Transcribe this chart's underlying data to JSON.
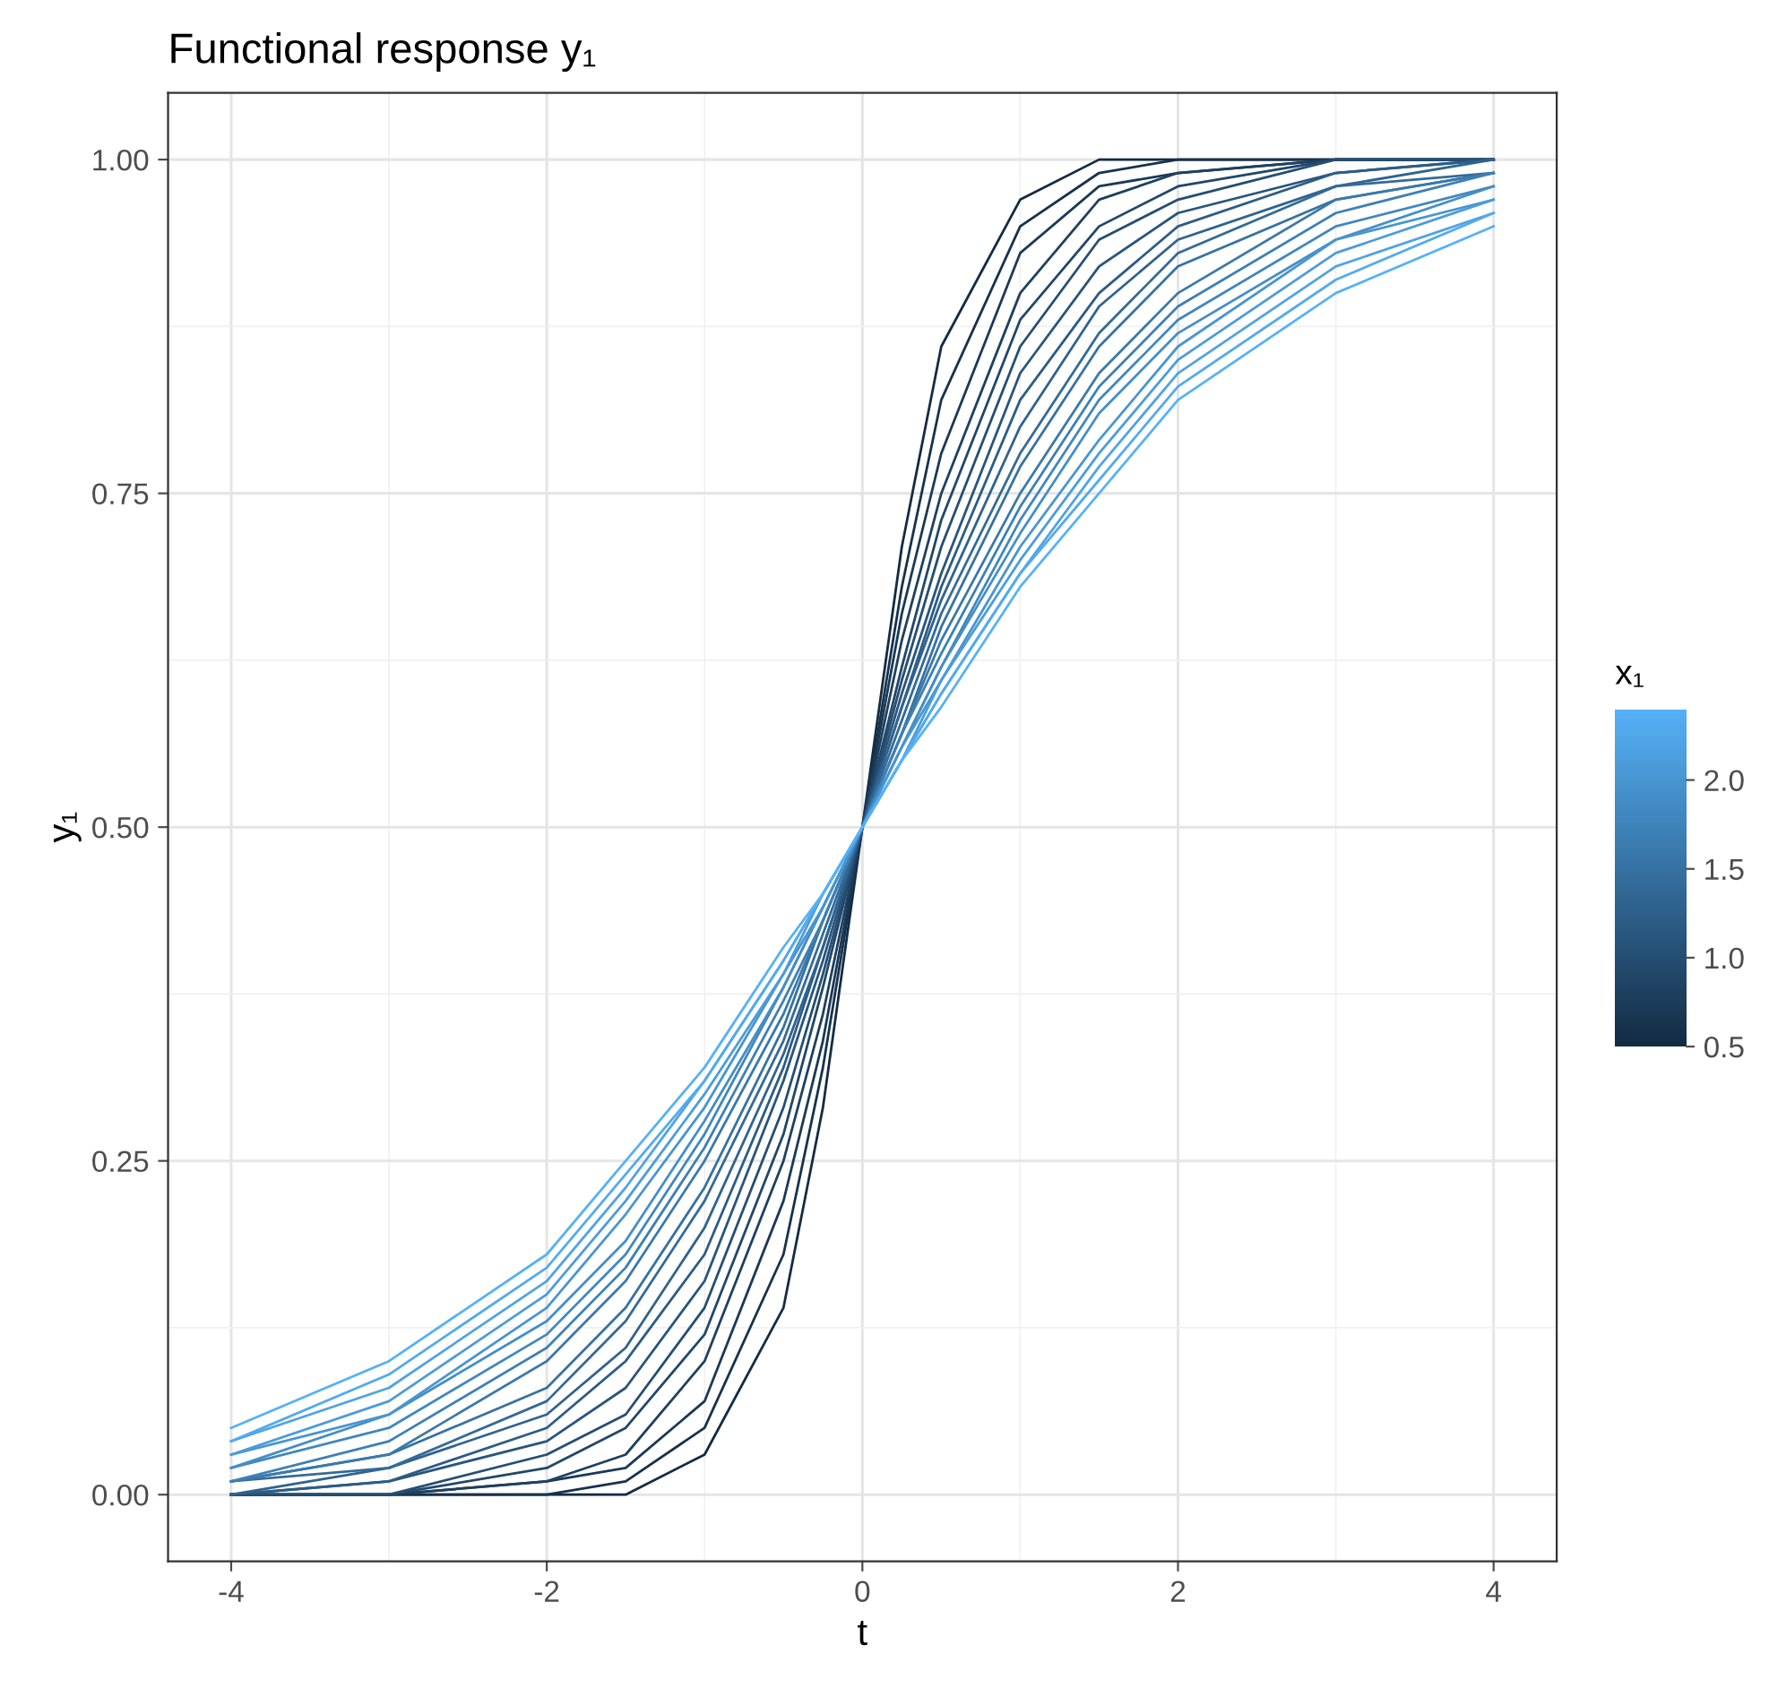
{
  "chart_data": {
    "type": "line",
    "title": "Functional response y₁",
    "xlabel": "t",
    "ylabel": "y₁",
    "clabel": "x₁",
    "x": [
      -4,
      -3,
      -2,
      -1.5,
      -1,
      -0.5,
      -0.25,
      0,
      0.25,
      0.5,
      1,
      1.5,
      2,
      3,
      4
    ],
    "series": [
      {
        "color": "#132b43",
        "values": [
          0.0,
          0.0,
          0.0,
          0.0,
          0.03,
          0.14,
          0.29,
          0.5,
          0.71,
          0.86,
          0.97,
          1.0,
          1.0,
          1.0,
          1.0
        ]
      },
      {
        "color": "#16324c",
        "values": [
          0.0,
          0.0,
          0.0,
          0.01,
          0.05,
          0.18,
          0.32,
          0.5,
          0.68,
          0.82,
          0.95,
          0.99,
          1.0,
          1.0,
          1.0
        ]
      },
      {
        "color": "#1a3956",
        "values": [
          0.0,
          0.0,
          0.01,
          0.02,
          0.07,
          0.22,
          0.34,
          0.5,
          0.66,
          0.78,
          0.93,
          0.98,
          0.99,
          1.0,
          1.0
        ]
      },
      {
        "color": "#1e405f",
        "values": [
          0.0,
          0.0,
          0.01,
          0.03,
          0.1,
          0.25,
          0.36,
          0.5,
          0.64,
          0.75,
          0.9,
          0.97,
          0.99,
          1.0,
          1.0
        ]
      },
      {
        "color": "#214769",
        "values": [
          0.0,
          0.0,
          0.02,
          0.05,
          0.12,
          0.27,
          0.38,
          0.5,
          0.62,
          0.73,
          0.88,
          0.95,
          0.98,
          1.0,
          1.0
        ]
      },
      {
        "color": "#254e72",
        "values": [
          0.0,
          0.0,
          0.03,
          0.06,
          0.14,
          0.29,
          0.39,
          0.5,
          0.61,
          0.71,
          0.86,
          0.94,
          0.97,
          1.0,
          1.0
        ]
      },
      {
        "color": "#28557c",
        "values": [
          0.0,
          0.01,
          0.04,
          0.08,
          0.16,
          0.31,
          0.4,
          0.5,
          0.6,
          0.69,
          0.84,
          0.92,
          0.96,
          0.99,
          1.0
        ]
      },
      {
        "color": "#2c5c85",
        "values": [
          0.0,
          0.01,
          0.05,
          0.1,
          0.18,
          0.32,
          0.41,
          0.5,
          0.59,
          0.68,
          0.82,
          0.9,
          0.95,
          0.99,
          1.0
        ]
      },
      {
        "color": "#2f638f",
        "values": [
          0.0,
          0.02,
          0.06,
          0.11,
          0.2,
          0.33,
          0.41,
          0.5,
          0.59,
          0.67,
          0.8,
          0.89,
          0.94,
          0.98,
          1.0
        ]
      },
      {
        "color": "#336a98",
        "values": [
          0.01,
          0.02,
          0.07,
          0.13,
          0.22,
          0.34,
          0.42,
          0.5,
          0.58,
          0.66,
          0.78,
          0.87,
          0.93,
          0.98,
          0.99
        ]
      },
      {
        "color": "#3672a2",
        "values": [
          0.01,
          0.03,
          0.08,
          0.14,
          0.23,
          0.35,
          0.43,
          0.5,
          0.57,
          0.65,
          0.77,
          0.86,
          0.92,
          0.97,
          0.99
        ]
      },
      {
        "color": "#3a79ab",
        "values": [
          0.01,
          0.03,
          0.1,
          0.16,
          0.25,
          0.36,
          0.43,
          0.5,
          0.57,
          0.64,
          0.75,
          0.84,
          0.9,
          0.97,
          0.99
        ]
      },
      {
        "color": "#3d80b5",
        "values": [
          0.01,
          0.04,
          0.11,
          0.17,
          0.26,
          0.37,
          0.43,
          0.5,
          0.57,
          0.63,
          0.74,
          0.83,
          0.89,
          0.96,
          0.99
        ]
      },
      {
        "color": "#4187be",
        "values": [
          0.02,
          0.05,
          0.12,
          0.18,
          0.27,
          0.38,
          0.44,
          0.5,
          0.56,
          0.62,
          0.73,
          0.82,
          0.88,
          0.95,
          0.98
        ]
      },
      {
        "color": "#448ec8",
        "values": [
          0.02,
          0.06,
          0.13,
          0.19,
          0.28,
          0.38,
          0.44,
          0.5,
          0.56,
          0.62,
          0.72,
          0.81,
          0.87,
          0.94,
          0.98
        ]
      },
      {
        "color": "#4895d1",
        "values": [
          0.03,
          0.06,
          0.14,
          0.21,
          0.29,
          0.39,
          0.44,
          0.5,
          0.56,
          0.61,
          0.71,
          0.79,
          0.86,
          0.94,
          0.97
        ]
      },
      {
        "color": "#4b9cdb",
        "values": [
          0.03,
          0.07,
          0.15,
          0.22,
          0.3,
          0.39,
          0.45,
          0.5,
          0.55,
          0.61,
          0.7,
          0.78,
          0.85,
          0.93,
          0.97
        ]
      },
      {
        "color": "#4fa3e4",
        "values": [
          0.04,
          0.08,
          0.16,
          0.23,
          0.31,
          0.4,
          0.45,
          0.5,
          0.55,
          0.6,
          0.69,
          0.77,
          0.84,
          0.92,
          0.96
        ]
      },
      {
        "color": "#52aaee",
        "values": [
          0.04,
          0.09,
          0.17,
          0.24,
          0.31,
          0.4,
          0.45,
          0.5,
          0.55,
          0.6,
          0.69,
          0.76,
          0.83,
          0.91,
          0.96
        ]
      },
      {
        "color": "#56b1f7",
        "values": [
          0.05,
          0.1,
          0.18,
          0.25,
          0.32,
          0.41,
          0.45,
          0.5,
          0.55,
          0.59,
          0.68,
          0.75,
          0.82,
          0.9,
          0.95
        ]
      }
    ],
    "xlim": [
      -4.4,
      4.4
    ],
    "ylim": [
      -0.05,
      1.05
    ],
    "xticks": [
      -4,
      -2,
      0,
      2,
      4
    ],
    "yticks": [
      {
        "value": 0,
        "label": "0.00"
      },
      {
        "value": 0.25,
        "label": "0.25"
      },
      {
        "value": 0.5,
        "label": "0.50"
      },
      {
        "value": 0.75,
        "label": "0.75"
      },
      {
        "value": 1,
        "label": "1.00"
      }
    ],
    "clim": [
      0.5,
      2.4
    ],
    "cticks": [
      {
        "value": 0.5,
        "label": "0.5"
      },
      {
        "value": 1,
        "label": "1.0"
      },
      {
        "value": 1.5,
        "label": "1.5"
      },
      {
        "value": 2,
        "label": "2.0"
      }
    ],
    "grid": true,
    "marker": "none",
    "line_style": "solid",
    "legend": false
  }
}
